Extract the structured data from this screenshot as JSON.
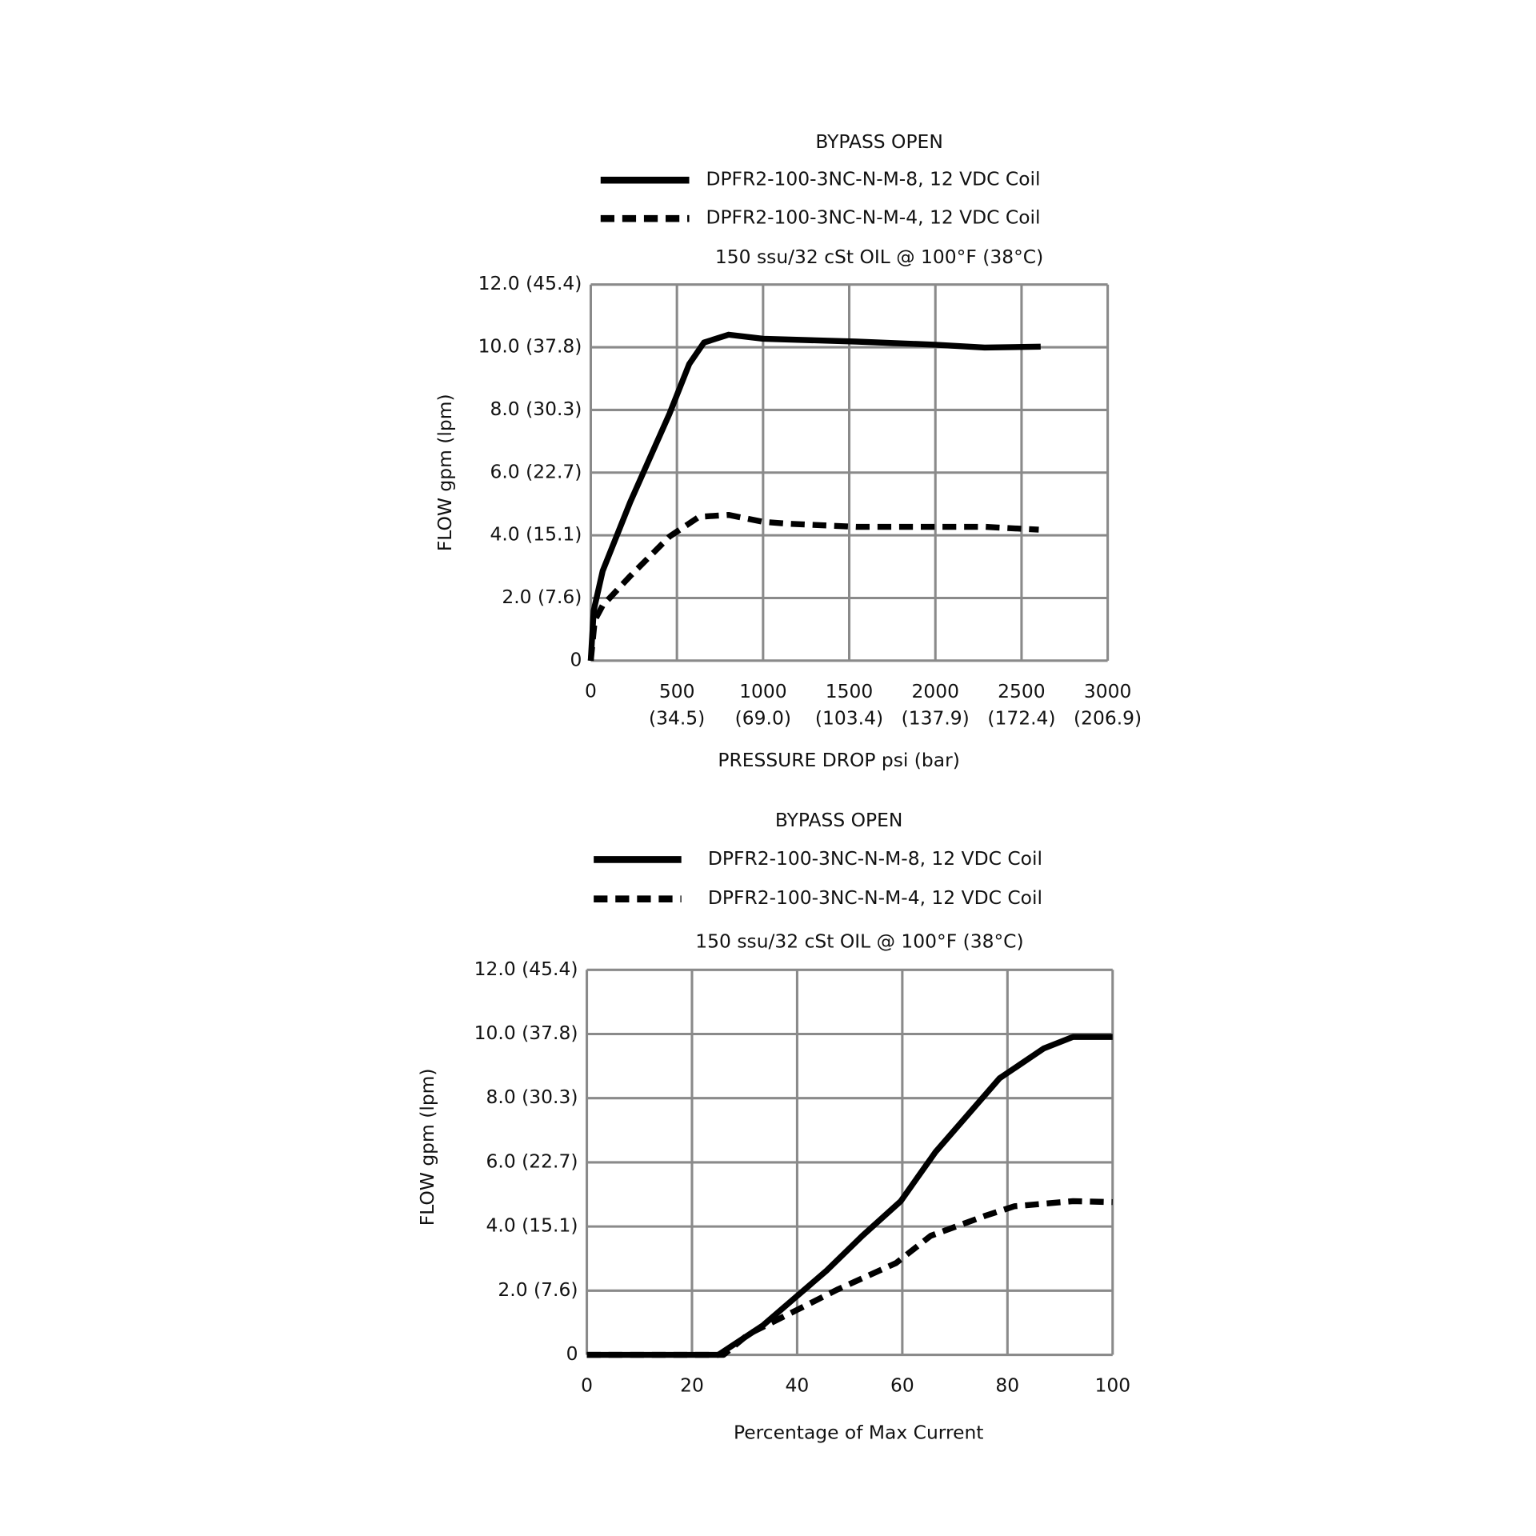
{
  "chart_data": [
    {
      "type": "line",
      "title": "BYPASS OPEN",
      "subtitle": "150 ssu/32 cSt OIL @ 100°F (38°C)",
      "xlabel": "PRESSURE DROP psi (bar)",
      "ylabel": "FLOW gpm (lpm)",
      "xlim": [
        0,
        3000
      ],
      "xticks": [
        0,
        {
          "value": 500,
          "label": "500 (34.5)"
        },
        {
          "value": 1000,
          "label": "1000 (69.0)"
        },
        {
          "value": 1500,
          "label": "1500 (103.4)"
        },
        {
          "value": 2000,
          "label": "2000 (137.9)"
        },
        {
          "value": 2500,
          "label": "2500 (172.4)"
        },
        {
          "value": 3000,
          "label": "3000 (206.9)"
        }
      ],
      "ylim": [
        0,
        12
      ],
      "yticks": [
        0,
        {
          "value": 2,
          "label": "2.0 (7.6)"
        },
        {
          "value": 4,
          "label": "4.0 (15.1)"
        },
        {
          "value": 6,
          "label": "6.0 (22.7)"
        },
        {
          "value": 8,
          "label": "8.0 (30.3)"
        },
        {
          "value": 10,
          "label": "10.0 (37.8)"
        },
        {
          "value": 12,
          "label": "12.0 (45.4)"
        }
      ],
      "grid": true,
      "series": [
        {
          "name": "DPFR2-100-3NC-N-M-8, 12 VDC Coil",
          "color": "#000000",
          "line_style": "solid",
          "x": [
            0,
            17,
            69,
            229,
            457,
            571,
            657,
            800,
            1000,
            1543,
            2000,
            2286,
            2611
          ],
          "values": [
            0,
            1.6,
            2.86,
            5.06,
            7.88,
            9.46,
            10.15,
            10.4,
            10.27,
            10.18,
            10.08,
            9.99,
            10.02
          ]
        },
        {
          "name": "DPFR2-100-3NC-N-M-4, 12 VDC Coil",
          "color": "#000000",
          "line_style": "dashed",
          "x": [
            0,
            23,
            69,
            229,
            457,
            629,
            800,
            1000,
            1143,
            1543,
            2286,
            2600
          ],
          "values": [
            0,
            1.29,
            1.76,
            2.7,
            3.96,
            4.59,
            4.65,
            4.43,
            4.37,
            4.27,
            4.27,
            4.18
          ]
        }
      ]
    },
    {
      "type": "line",
      "title": "BYPASS OPEN",
      "subtitle": "150 ssu/32 cSt OIL @ 100°F (38°C)",
      "xlabel": "Percentage of Max Current",
      "ylabel": "FLOW gpm (lpm)",
      "xlim": [
        0,
        100
      ],
      "xticks": [
        0,
        20,
        40,
        60,
        80,
        100
      ],
      "ylim": [
        0,
        12
      ],
      "yticks": [
        0,
        {
          "value": 2,
          "label": "2.0 (7.6)"
        },
        {
          "value": 4,
          "label": "4.0 (15.1)"
        },
        {
          "value": 6,
          "label": "6.0 (22.7)"
        },
        {
          "value": 8,
          "label": "8.0 (30.3)"
        },
        {
          "value": 10,
          "label": "10.0 (37.8)"
        },
        {
          "value": 12,
          "label": "12.0 (45.4)"
        }
      ],
      "grid": true,
      "series": [
        {
          "name": "DPFR2-100-3NC-N-M-8, 12 VDC Coil",
          "color": "#000000",
          "line_style": "solid",
          "x": [
            0,
            25,
            33.5,
            45.7,
            52.4,
            59.7,
            66.3,
            78.5,
            86.9,
            92.5,
            100
          ],
          "values": [
            0,
            0,
            0.92,
            2.64,
            3.71,
            4.79,
            6.32,
            8.62,
            9.55,
            9.91,
            9.91
          ]
        },
        {
          "name": "DPFR2-100-3NC-N-M-4, 12 VDC Coil",
          "color": "#000000",
          "line_style": "dashed",
          "x": [
            0,
            26,
            30.7,
            40.1,
            47.6,
            58.8,
            65.4,
            75.7,
            81.3,
            92.5,
            100
          ],
          "values": [
            0,
            0,
            0.64,
            1.41,
            2.03,
            2.86,
            3.71,
            4.33,
            4.63,
            4.79,
            4.76
          ]
        }
      ]
    }
  ]
}
